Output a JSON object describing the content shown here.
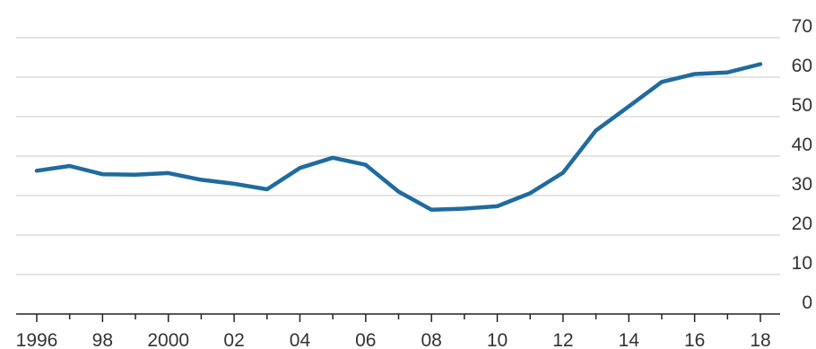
{
  "chart_data": {
    "type": "line",
    "title": "",
    "xlabel": "",
    "ylabel": "",
    "x": [
      1996,
      1997,
      1998,
      1999,
      2000,
      2001,
      2002,
      2003,
      2004,
      2005,
      2006,
      2007,
      2008,
      2009,
      2010,
      2011,
      2012,
      2013,
      2014,
      2015,
      2016,
      2017,
      2018
    ],
    "series": [
      {
        "values": [
          36.3,
          37.5,
          35.4,
          35.3,
          35.7,
          34.0,
          33.0,
          31.6,
          37.0,
          39.6,
          37.8,
          31.0,
          26.4,
          26.7,
          27.3,
          30.6,
          35.8,
          46.5,
          52.6,
          58.8,
          60.8,
          61.2,
          63.3
        ],
        "color": "#1f6b9e"
      }
    ],
    "xlim": [
      1995.6,
      2019.3
    ],
    "ylim": [
      0,
      70
    ],
    "yticks": [
      {
        "value": 0,
        "label": "0"
      },
      {
        "value": 10,
        "label": "10"
      },
      {
        "value": 20,
        "label": "20"
      },
      {
        "value": 30,
        "label": "30"
      },
      {
        "value": 40,
        "label": "40"
      },
      {
        "value": 50,
        "label": "50"
      },
      {
        "value": 60,
        "label": "60"
      },
      {
        "value": 70,
        "label": "70"
      }
    ],
    "xticks": [
      1996,
      1997,
      1998,
      1999,
      2000,
      2001,
      2002,
      2003,
      2004,
      2005,
      2006,
      2007,
      2008,
      2009,
      2010,
      2011,
      2012,
      2013,
      2014,
      2015,
      2016,
      2017,
      2018
    ],
    "xtick_labels": [
      {
        "value": 1996,
        "label": "1996"
      },
      {
        "value": 1998,
        "label": "98"
      },
      {
        "value": 2000,
        "label": "2000"
      },
      {
        "value": 2002,
        "label": "02"
      },
      {
        "value": 2004,
        "label": "04"
      },
      {
        "value": 2006,
        "label": "06"
      },
      {
        "value": 2008,
        "label": "08"
      },
      {
        "value": 2010,
        "label": "10"
      },
      {
        "value": 2012,
        "label": "12"
      },
      {
        "value": 2014,
        "label": "14"
      },
      {
        "value": 2016,
        "label": "16"
      },
      {
        "value": 2018,
        "label": "18"
      }
    ],
    "grid": "horizontal",
    "y_axis_position": "right",
    "legend": "none"
  }
}
